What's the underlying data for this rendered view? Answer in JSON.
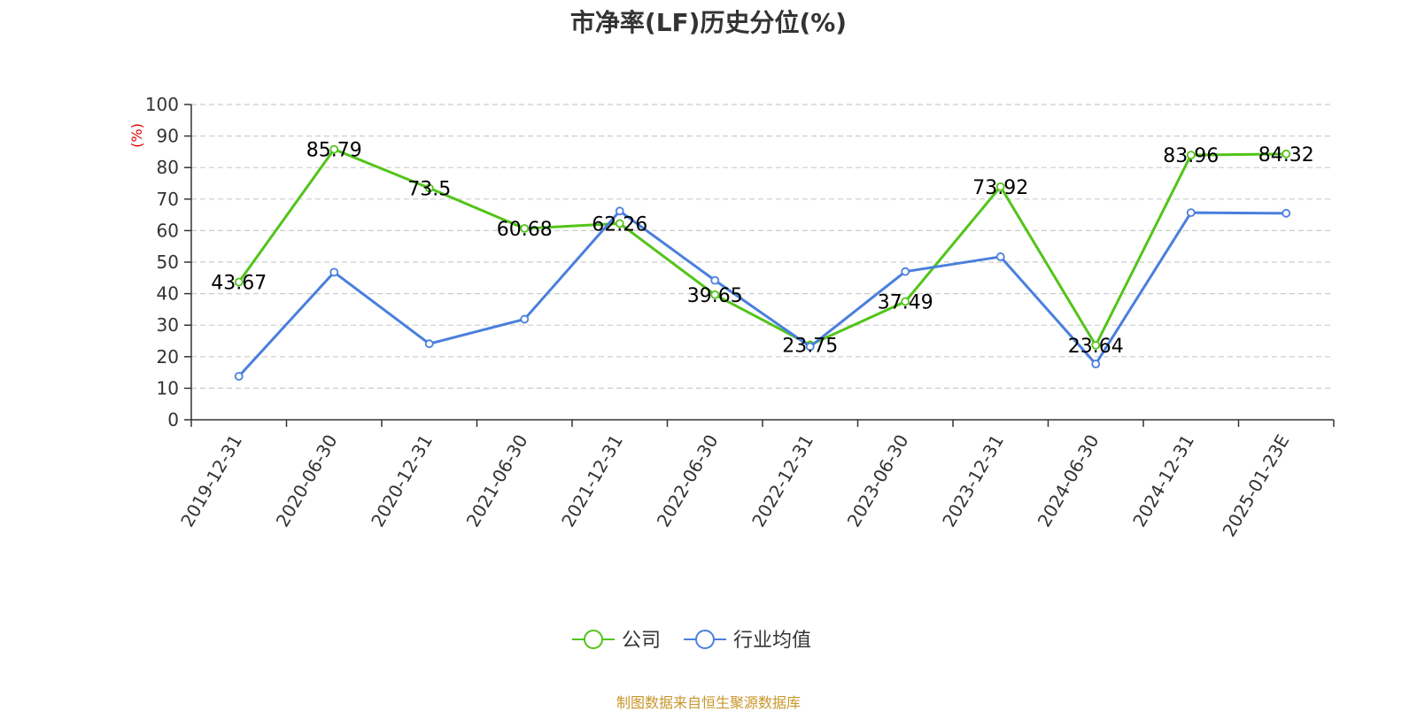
{
  "chart_data": {
    "type": "line",
    "title": "市净率(LF)历史分位(%)",
    "ylabel": "(%)",
    "xlabel": "",
    "ylim": [
      0,
      100
    ],
    "yticks": [
      0,
      10,
      20,
      30,
      40,
      50,
      60,
      70,
      80,
      90,
      100
    ],
    "categories": [
      "2019-12-31",
      "2020-06-30",
      "2020-12-31",
      "2021-06-30",
      "2021-12-31",
      "2022-06-30",
      "2022-12-31",
      "2023-06-30",
      "2023-12-31",
      "2024-06-30",
      "2024-12-31",
      "2025-01-23E"
    ],
    "grid": true,
    "legend_position": "bottom",
    "series": [
      {
        "name": "公司",
        "color": "#52c41a",
        "values": [
          43.67,
          85.79,
          73.5,
          60.68,
          62.26,
          39.65,
          23.75,
          37.49,
          73.92,
          23.64,
          83.96,
          84.32
        ],
        "labels": [
          "43.67",
          "85.79",
          "73.5",
          "60.68",
          "62.26",
          "39.65",
          "23.75",
          "37.49",
          "73.92",
          "23.64",
          "83.96",
          "84.32"
        ]
      },
      {
        "name": "行业均值",
        "color": "#4a7fdc",
        "values": [
          13.8,
          46.8,
          24.1,
          31.9,
          66.2,
          44.2,
          23.2,
          47.0,
          51.7,
          17.7,
          65.7,
          65.5
        ]
      }
    ]
  },
  "footer": {
    "source": "制图数据来自恒生聚源数据库"
  }
}
